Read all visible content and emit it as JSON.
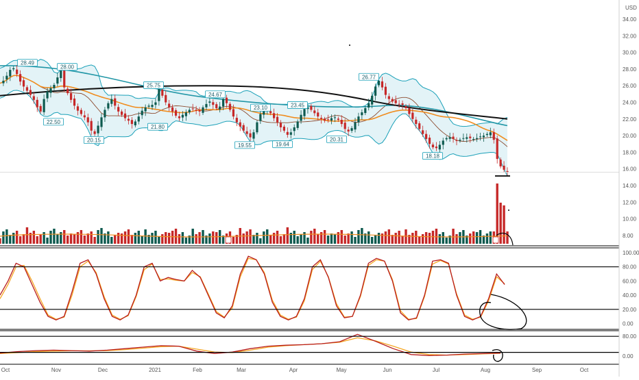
{
  "currency_label": "USD",
  "colors": {
    "up": "#26a69a",
    "up_dark": "#0e5a4f",
    "down": "#c62828",
    "bb": "#1aa0b8",
    "bb_fill": "#e3f3f7",
    "ma_orange": "#f08c1e",
    "ma_black": "#111111",
    "ma_teal": "#2196a6",
    "ma_brown": "#8d4b2f",
    "stoch_k": "#b71c1c",
    "stoch_d": "#f5a623",
    "grid": "#000000",
    "axis_text": "#555555"
  },
  "chart_data": [
    {
      "type": "candlestick",
      "panel": "price",
      "y_ticks": [
        "34.00",
        "32.00",
        "30.00",
        "28.00",
        "26.00",
        "24.00",
        "22.00",
        "20.00",
        "18.00",
        "16.00",
        "14.00",
        "12.00",
        "10.00",
        "8.00"
      ],
      "ylim": [
        6.5,
        35
      ],
      "last_price_line": 15.6,
      "annotations": [
        "28.49",
        "28.00",
        "22.50",
        "20.15",
        "25.75",
        "21.80",
        "24.67",
        "19.55",
        "23.10",
        "19.64",
        "23.45",
        "20.31",
        "26.77",
        "18.18"
      ],
      "close_path": [
        26.3,
        26.6,
        27.2,
        27.9,
        28.1,
        27.4,
        26.5,
        25.9,
        25.4,
        24.9,
        24.3,
        23.4,
        22.9,
        24.4,
        25.3,
        25.7,
        26.1,
        27.0,
        27.9,
        25.8,
        25.1,
        24.3,
        23.6,
        23.0,
        22.6,
        22.2,
        21.6,
        20.6,
        20.2,
        21.2,
        22.2,
        23.1,
        23.9,
        24.4,
        23.6,
        22.9,
        22.5,
        22.1,
        21.8,
        21.4,
        21.7,
        22.3,
        23.0,
        23.4,
        23.6,
        23.7,
        24.0,
        25.6,
        24.8,
        24.0,
        23.4,
        22.9,
        22.4,
        22.1,
        22.5,
        22.8,
        23.1,
        23.2,
        23.0,
        22.9,
        23.4,
        23.8,
        24.1,
        23.7,
        23.3,
        23.5,
        24.4,
        23.9,
        23.1,
        22.3,
        21.6,
        21.1,
        20.6,
        20.2,
        19.8,
        20.4,
        21.6,
        22.6,
        23.0,
        23.1,
        22.7,
        22.1,
        21.6,
        21.0,
        20.6,
        20.1,
        20.4,
        21.0,
        21.7,
        22.5,
        23.2,
        23.4,
        23.1,
        22.7,
        22.3,
        22.0,
        21.8,
        21.9,
        22.1,
        22.2,
        21.9,
        21.4,
        20.8,
        20.5,
        20.9,
        21.6,
        22.3,
        22.8,
        23.3,
        23.9,
        24.8,
        25.9,
        26.6,
        25.8,
        24.9,
        24.4,
        24.1,
        23.9,
        23.8,
        23.7,
        23.3,
        22.6,
        22.0,
        21.4,
        20.8,
        20.2,
        19.6,
        19.0,
        18.6,
        18.5,
        18.9,
        19.4,
        19.7,
        19.8,
        19.6,
        19.4,
        19.5,
        19.7,
        19.8,
        19.7,
        19.6,
        19.7,
        19.9,
        20.0,
        20.2,
        20.4,
        19.5,
        17.2,
        16.3,
        15.9,
        15.6
      ]
    },
    {
      "type": "bar",
      "panel": "volume",
      "right_axis_shared_with_price": true,
      "earnings_markers": 3
    },
    {
      "type": "line",
      "panel": "stochastic",
      "y_ticks": [
        "100.00",
        "80.00",
        "60.00",
        "40.00",
        "20.00",
        "0.00"
      ],
      "ylim": [
        -5,
        105
      ],
      "levels": [
        80,
        20
      ],
      "series_k": [
        40,
        60,
        85,
        80,
        55,
        30,
        10,
        5,
        10,
        45,
        85,
        90,
        70,
        35,
        10,
        5,
        12,
        40,
        80,
        85,
        60,
        65,
        62,
        60,
        75,
        65,
        40,
        15,
        8,
        25,
        70,
        95,
        90,
        70,
        30,
        10,
        5,
        10,
        35,
        80,
        90,
        65,
        25,
        8,
        10,
        40,
        85,
        92,
        88,
        60,
        15,
        5,
        8,
        40,
        88,
        90,
        85,
        40,
        10,
        5,
        10,
        35,
        70,
        55
      ],
      "series_d": [
        35,
        55,
        80,
        82,
        60,
        35,
        12,
        6,
        9,
        40,
        80,
        88,
        72,
        38,
        12,
        6,
        11,
        38,
        76,
        84,
        62,
        63,
        61,
        60,
        72,
        66,
        42,
        17,
        9,
        22,
        66,
        92,
        90,
        72,
        33,
        12,
        6,
        9,
        32,
        76,
        88,
        66,
        28,
        9,
        10,
        38,
        82,
        90,
        88,
        62,
        18,
        6,
        7,
        38,
        84,
        89,
        84,
        42,
        12,
        6,
        9,
        32,
        66,
        56
      ]
    },
    {
      "type": "line",
      "panel": "oscillator",
      "y_ticks": [
        "80.00",
        "0.00"
      ],
      "ylim": [
        -10,
        100
      ],
      "levels": [
        80,
        15
      ]
    }
  ],
  "x_axis": [
    "Oct",
    "Nov",
    "Dec",
    "2021",
    "Feb",
    "Mar",
    "Apr",
    "May",
    "Jun",
    "Jul",
    "Aug",
    "Sep",
    "Oct"
  ]
}
